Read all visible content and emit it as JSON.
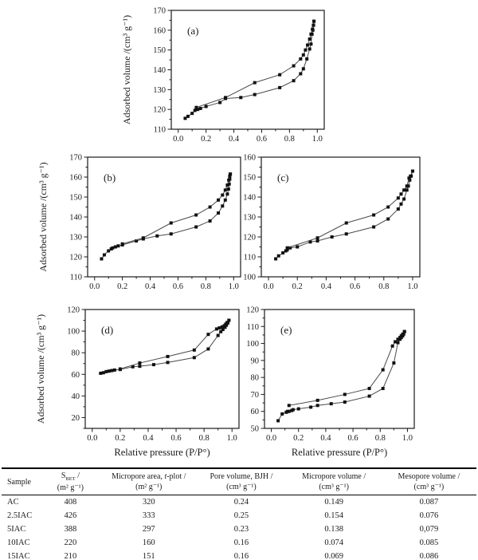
{
  "figure": {
    "background": "#ffffff",
    "text_color": "#1a1a1a",
    "curve_color": "#4a4a4a",
    "marker_color": "#111111"
  },
  "chart_data": [
    {
      "type": "line",
      "panel": "(a)",
      "ylabel": "Adsorbed volume /(cm³ g⁻¹)",
      "xlabel": "",
      "ylim": [
        110,
        170
      ],
      "ymajor": 10,
      "yminor": 5,
      "xlim": [
        -0.05,
        1.05
      ],
      "xmajor": 0.2,
      "xminor": 0.1,
      "grid": false,
      "legend": "none",
      "series": [
        {
          "name": "adsorption",
          "points": [
            [
              0.05,
              115.5
            ],
            [
              0.07,
              116.5
            ],
            [
              0.1,
              118
            ],
            [
              0.12,
              119.5
            ],
            [
              0.14,
              120
            ],
            [
              0.16,
              120.5
            ],
            [
              0.2,
              121.5
            ],
            [
              0.3,
              123.5
            ],
            [
              0.34,
              125.5
            ],
            [
              0.45,
              126
            ],
            [
              0.55,
              127.5
            ],
            [
              0.73,
              131
            ],
            [
              0.83,
              134.5
            ],
            [
              0.88,
              138
            ],
            [
              0.9,
              140.5
            ],
            [
              0.925,
              145.5
            ],
            [
              0.945,
              150.5
            ],
            [
              0.955,
              153
            ],
            [
              0.962,
              158
            ],
            [
              0.968,
              160
            ],
            [
              0.973,
              162.5
            ],
            [
              0.976,
              164.5
            ]
          ]
        },
        {
          "name": "desorption",
          "points": [
            [
              0.13,
              121
            ],
            [
              0.34,
              126
            ],
            [
              0.55,
              133.5
            ],
            [
              0.73,
              137.5
            ],
            [
              0.83,
              142
            ],
            [
              0.88,
              145.5
            ],
            [
              0.9,
              147.5
            ],
            [
              0.915,
              150
            ],
            [
              0.93,
              152.5
            ],
            [
              0.945,
              155.5
            ],
            [
              0.955,
              158
            ],
            [
              0.965,
              160.5
            ],
            [
              0.972,
              162.5
            ],
            [
              0.976,
              164.5
            ]
          ]
        }
      ]
    },
    {
      "type": "line",
      "panel": "(b)",
      "ylabel": "Adsorbed volume /(cm³ g⁻¹)",
      "xlabel": "",
      "ylim": [
        110,
        170
      ],
      "ymajor": 10,
      "yminor": 5,
      "xlim": [
        -0.05,
        1.05
      ],
      "xmajor": 0.2,
      "xminor": 0.1,
      "grid": false,
      "legend": "none",
      "series": [
        {
          "name": "adsorption",
          "points": [
            [
              0.05,
              119
            ],
            [
              0.07,
              121
            ],
            [
              0.1,
              123
            ],
            [
              0.12,
              124
            ],
            [
              0.13,
              124.5
            ],
            [
              0.15,
              125
            ],
            [
              0.17,
              125.5
            ],
            [
              0.2,
              126
            ],
            [
              0.3,
              128
            ],
            [
              0.35,
              129
            ],
            [
              0.45,
              130.5
            ],
            [
              0.55,
              131.5
            ],
            [
              0.73,
              135
            ],
            [
              0.83,
              138
            ],
            [
              0.89,
              142
            ],
            [
              0.92,
              145.5
            ],
            [
              0.94,
              148.5
            ],
            [
              0.955,
              151.5
            ],
            [
              0.963,
              154
            ],
            [
              0.968,
              156.5
            ],
            [
              0.972,
              159
            ],
            [
              0.976,
              161.5
            ]
          ]
        },
        {
          "name": "desorption",
          "points": [
            [
              0.2,
              126.5
            ],
            [
              0.35,
              129.5
            ],
            [
              0.55,
              137
            ],
            [
              0.73,
              141
            ],
            [
              0.83,
              145
            ],
            [
              0.89,
              148.5
            ],
            [
              0.92,
              151
            ],
            [
              0.94,
              153.5
            ],
            [
              0.955,
              156
            ],
            [
              0.965,
              158.5
            ],
            [
              0.972,
              160.5
            ],
            [
              0.976,
              161.5
            ]
          ]
        }
      ]
    },
    {
      "type": "line",
      "panel": "(c)",
      "ylabel": "",
      "xlabel": "",
      "ylim": [
        100,
        160
      ],
      "ymajor": 10,
      "yminor": 5,
      "xlim": [
        -0.05,
        1.05
      ],
      "xmajor": 0.2,
      "xminor": 0.1,
      "grid": false,
      "legend": "none",
      "series": [
        {
          "name": "adsorption",
          "points": [
            [
              0.05,
              109
            ],
            [
              0.07,
              110.5
            ],
            [
              0.1,
              112
            ],
            [
              0.12,
              113
            ],
            [
              0.13,
              113.5
            ],
            [
              0.15,
              114.5
            ],
            [
              0.2,
              115
            ],
            [
              0.29,
              117.5
            ],
            [
              0.34,
              118
            ],
            [
              0.44,
              120
            ],
            [
              0.54,
              121.5
            ],
            [
              0.73,
              125
            ],
            [
              0.83,
              129
            ],
            [
              0.9,
              134
            ],
            [
              0.92,
              136.5
            ],
            [
              0.94,
              139
            ],
            [
              0.96,
              143.5
            ],
            [
              0.97,
              145.5
            ],
            [
              0.98,
              148.5
            ],
            [
              0.99,
              150.5
            ],
            [
              1.0,
              153
            ]
          ]
        },
        {
          "name": "desorption",
          "points": [
            [
              0.13,
              114.5
            ],
            [
              0.34,
              119.5
            ],
            [
              0.54,
              127
            ],
            [
              0.73,
              131
            ],
            [
              0.83,
              135
            ],
            [
              0.9,
              139.5
            ],
            [
              0.92,
              141.5
            ],
            [
              0.94,
              143.5
            ],
            [
              0.96,
              145.5
            ],
            [
              0.975,
              149.5
            ],
            [
              0.985,
              150.5
            ],
            [
              1.0,
              153
            ]
          ]
        }
      ]
    },
    {
      "type": "line",
      "panel": "(d)",
      "ylabel": "Adsorbed volume /(cm³ g⁻¹)",
      "xlabel": "Relative pressure (P/P°)",
      "ylim": [
        10,
        120
      ],
      "ymajor": 20,
      "yminor": 10,
      "xlim": [
        -0.05,
        1.05
      ],
      "xmajor": 0.2,
      "xminor": 0.1,
      "grid": false,
      "legend": "none",
      "series": [
        {
          "name": "adsorption",
          "points": [
            [
              0.06,
              61
            ],
            [
              0.08,
              61.5
            ],
            [
              0.1,
              62.5
            ],
            [
              0.12,
              63
            ],
            [
              0.14,
              63.5
            ],
            [
              0.16,
              64
            ],
            [
              0.2,
              64.5
            ],
            [
              0.29,
              67
            ],
            [
              0.34,
              67.5
            ],
            [
              0.44,
              69
            ],
            [
              0.54,
              71
            ],
            [
              0.73,
              75.5
            ],
            [
              0.83,
              83.5
            ],
            [
              0.9,
              96
            ],
            [
              0.92,
              99.5
            ],
            [
              0.935,
              101.5
            ],
            [
              0.95,
              103.5
            ],
            [
              0.96,
              105.5
            ],
            [
              0.97,
              107.5
            ],
            [
              0.978,
              110
            ]
          ]
        },
        {
          "name": "desorption",
          "points": [
            [
              0.2,
              65
            ],
            [
              0.34,
              70.5
            ],
            [
              0.54,
              76.5
            ],
            [
              0.73,
              82.5
            ],
            [
              0.83,
              97
            ],
            [
              0.89,
              102
            ],
            [
              0.91,
              103
            ],
            [
              0.93,
              104
            ],
            [
              0.945,
              105
            ],
            [
              0.955,
              106.5
            ],
            [
              0.965,
              108
            ],
            [
              0.978,
              110
            ]
          ]
        }
      ]
    },
    {
      "type": "line",
      "panel": "(e)",
      "ylabel": "",
      "xlabel": "Relative pressure (P/P°)",
      "ylim": [
        50,
        120
      ],
      "ymajor": 10,
      "yminor": 5,
      "xlim": [
        -0.05,
        1.05
      ],
      "xmajor": 0.2,
      "xminor": 0.1,
      "grid": false,
      "legend": "none",
      "series": [
        {
          "name": "adsorption",
          "points": [
            [
              0.05,
              54.5
            ],
            [
              0.08,
              58.5
            ],
            [
              0.11,
              59.5
            ],
            [
              0.12,
              60
            ],
            [
              0.13,
              60
            ],
            [
              0.15,
              60.5
            ],
            [
              0.16,
              61
            ],
            [
              0.2,
              61.5
            ],
            [
              0.29,
              62.5
            ],
            [
              0.34,
              63.5
            ],
            [
              0.44,
              64.5
            ],
            [
              0.54,
              65.5
            ],
            [
              0.72,
              69
            ],
            [
              0.82,
              73.5
            ],
            [
              0.9,
              88.5
            ],
            [
              0.93,
              100.5
            ],
            [
              0.945,
              102.5
            ],
            [
              0.955,
              103.5
            ],
            [
              0.965,
              104.5
            ],
            [
              0.972,
              105.5
            ],
            [
              0.978,
              107
            ]
          ]
        },
        {
          "name": "desorption",
          "points": [
            [
              0.13,
              63.5
            ],
            [
              0.34,
              66.5
            ],
            [
              0.54,
              70
            ],
            [
              0.72,
              73.5
            ],
            [
              0.82,
              84.5
            ],
            [
              0.89,
              98.5
            ],
            [
              0.91,
              101
            ],
            [
              0.93,
              102.5
            ],
            [
              0.945,
              103.5
            ],
            [
              0.955,
              104.5
            ],
            [
              0.965,
              105.5
            ],
            [
              0.978,
              107
            ]
          ]
        }
      ]
    }
  ],
  "table": {
    "headers": [
      {
        "name": "Sample"
      },
      {
        "line1_pre": "S",
        "line1_sub": "BET",
        "line1_post": " /",
        "line2": "(m² g⁻¹)"
      },
      {
        "line1_pre": "Micropore area, ",
        "line1_italic": "t",
        "line1_post": "-plot /",
        "line2": "(m² g⁻¹)"
      },
      {
        "line1_pre": "Pore volume, BJH /",
        "line2": "(cm³ g⁻¹)"
      },
      {
        "line1_pre": "Micropore volume /",
        "line2": "(cm³ g⁻¹)"
      },
      {
        "line1_pre": "Mesopore volume /",
        "line2": "(cm³ g⁻¹)"
      }
    ],
    "rows": [
      [
        "AC",
        "408",
        "320",
        "0.24",
        "0.149",
        "0.087"
      ],
      [
        "2.5IAC",
        "426",
        "333",
        "0.25",
        "0.154",
        "0.076"
      ],
      [
        "5IAC",
        "388",
        "297",
        "0.23",
        "0.138",
        "0,079"
      ],
      [
        "10IAC",
        "220",
        "160",
        "0.16",
        "0.074",
        "0.085"
      ],
      [
        "15IAC",
        "210",
        "151",
        "0.16",
        "0.069",
        "0.086"
      ]
    ]
  }
}
